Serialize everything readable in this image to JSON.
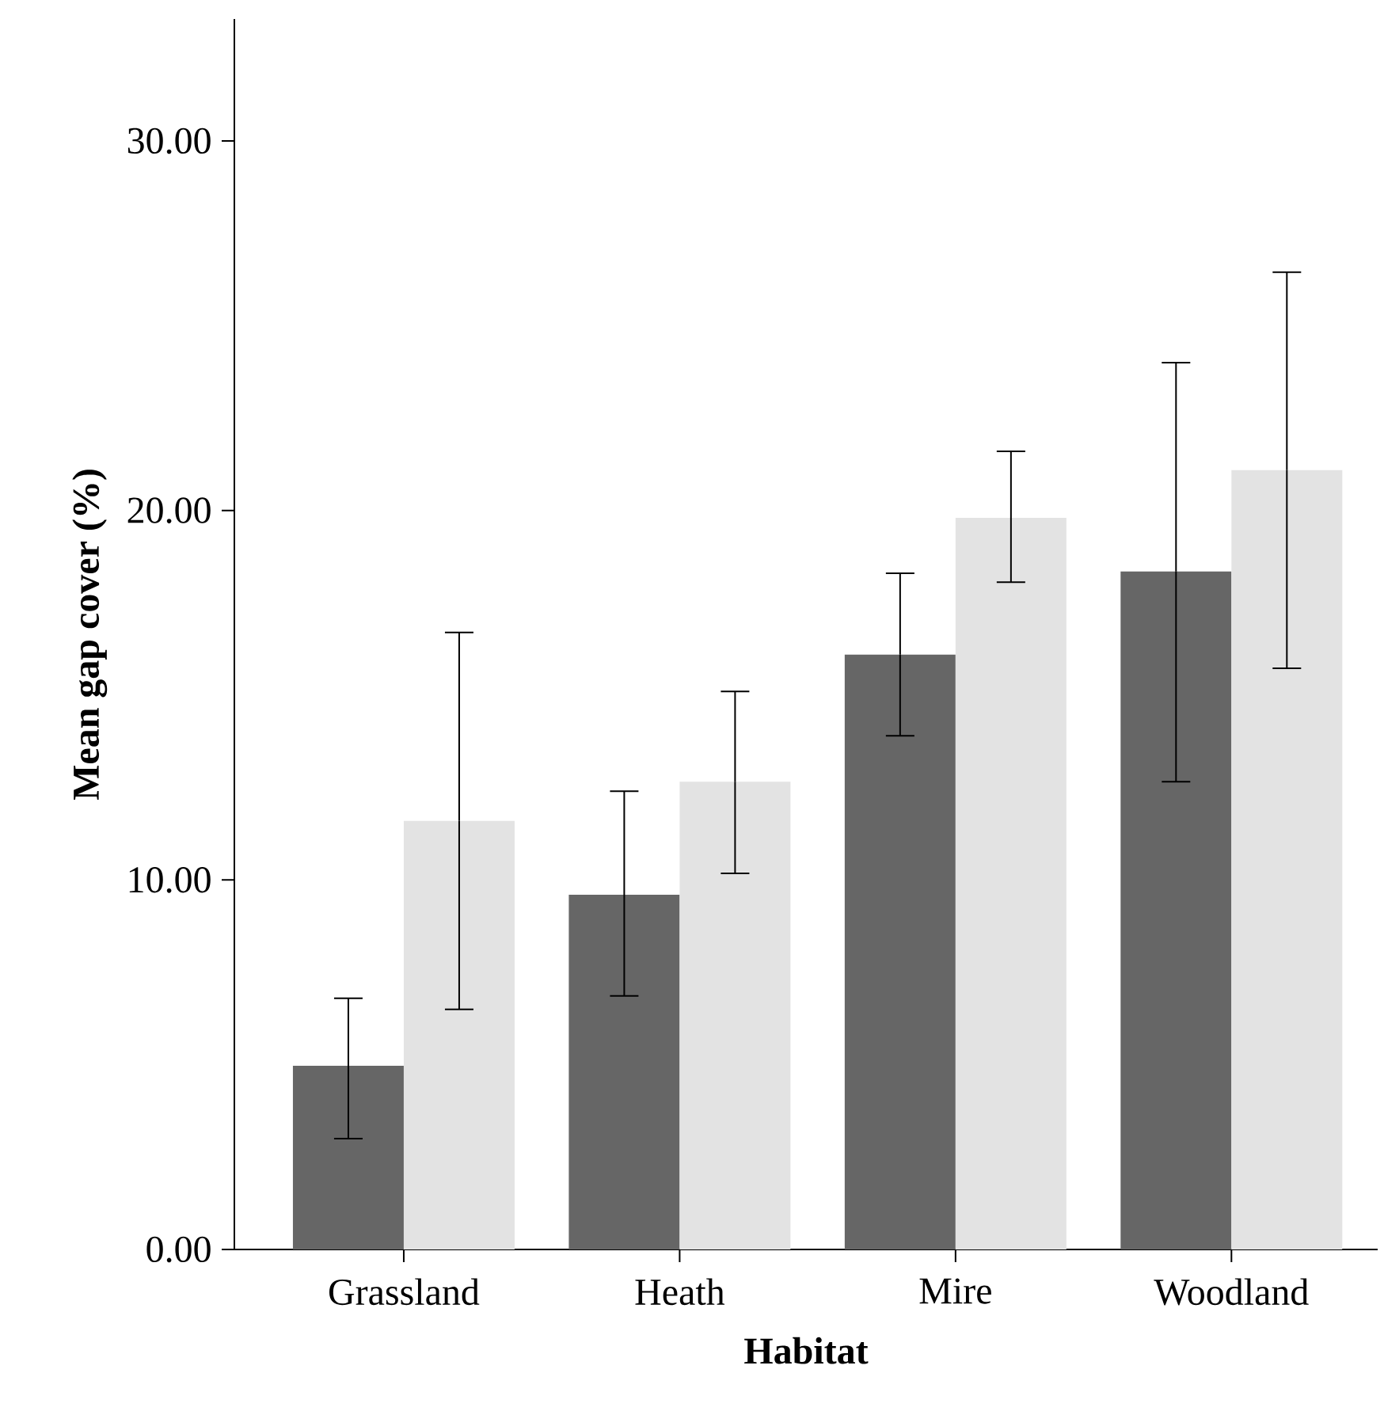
{
  "chart_data": {
    "type": "bar",
    "xlabel": "Habitat",
    "ylabel": "Mean gap cover (%)",
    "categories": [
      "Grassland",
      "Heath",
      "Mire",
      "Woodland"
    ],
    "series": [
      {
        "color": "#666666",
        "values": [
          4.97,
          9.6,
          16.1,
          18.35
        ],
        "errors": [
          [
            3.0,
            6.8
          ],
          [
            6.86,
            12.4
          ],
          [
            13.9,
            18.3
          ],
          [
            12.66,
            24.0
          ]
        ]
      },
      {
        "color": "#e3e3e3",
        "values": [
          11.6,
          12.66,
          19.8,
          21.09
        ],
        "errors": [
          [
            6.5,
            16.7
          ],
          [
            10.18,
            15.1
          ],
          [
            18.06,
            21.6
          ],
          [
            15.73,
            26.45
          ]
        ]
      }
    ],
    "ylim": [
      0,
      33.3
    ],
    "yticks": [
      {
        "value": 0,
        "label": "0.00"
      },
      {
        "value": 10,
        "label": "10.00"
      },
      {
        "value": 20,
        "label": "20.00"
      },
      {
        "value": 30,
        "label": "30.00"
      }
    ],
    "grid": false
  }
}
